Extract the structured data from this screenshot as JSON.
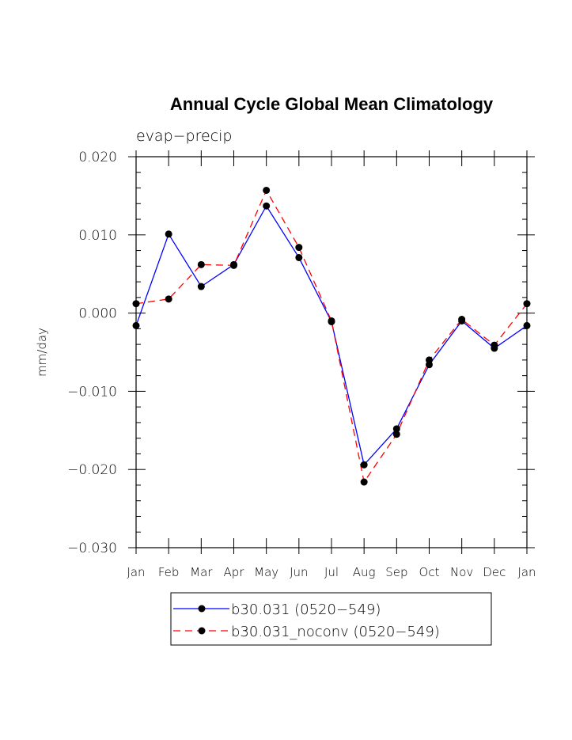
{
  "chart_data": {
    "type": "line",
    "title": "Annual Cycle Global Mean Climatology",
    "subtitle": "evap−precip",
    "ylabel": "mm/day",
    "xlabel": "",
    "categories": [
      "Jan",
      "Feb",
      "Mar",
      "Apr",
      "May",
      "Jun",
      "Jul",
      "Aug",
      "Sep",
      "Oct",
      "Nov",
      "Dec",
      "Jan"
    ],
    "ylim": [
      -0.03,
      0.02
    ],
    "yticks": [
      0.02,
      0.01,
      0.0,
      -0.01,
      -0.02,
      -0.03
    ],
    "ytick_labels": [
      "0.020",
      "0.010",
      "0.000",
      "−0.010",
      "−0.020",
      "−0.030"
    ],
    "grid": false,
    "legend_position": "bottom",
    "series": [
      {
        "name": "b30.031 (0520−549)",
        "color": "#0000ff",
        "style": "solid",
        "values": [
          -0.0016,
          0.0101,
          0.0034,
          0.0062,
          0.0137,
          0.0071,
          -0.0011,
          -0.0194,
          -0.0148,
          -0.0066,
          -0.001,
          -0.0045,
          -0.0016
        ]
      },
      {
        "name": "b30.031_noconv (0520−549)",
        "color": "#ff0000",
        "style": "dashed",
        "values": [
          0.0012,
          0.0018,
          0.0062,
          0.0061,
          0.0157,
          0.0084,
          -0.001,
          -0.0216,
          -0.0155,
          -0.006,
          -0.0008,
          -0.0041,
          0.0012
        ]
      }
    ]
  }
}
